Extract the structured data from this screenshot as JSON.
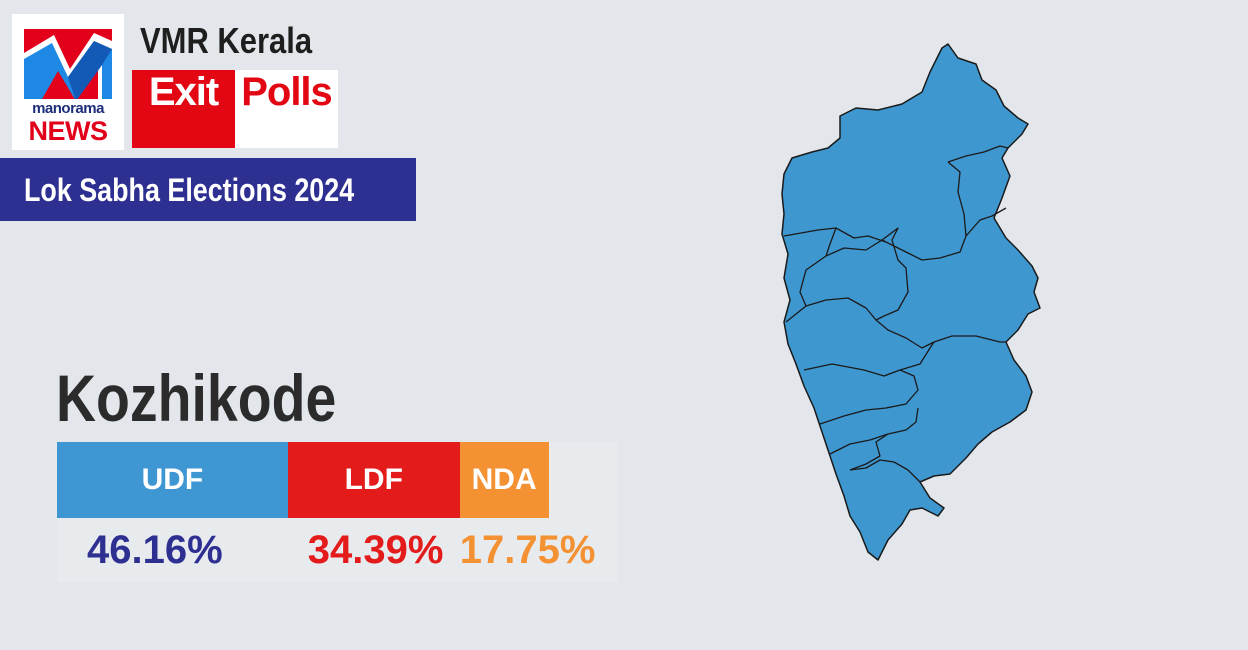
{
  "logo": {
    "line1": "manorama",
    "line2": "NEWS"
  },
  "header": {
    "subtitle": "VMR Kerala",
    "exit_label": "Exit",
    "polls_label": "Polls",
    "banner": "Lok Sabha Elections 2024"
  },
  "colors": {
    "udf": "#3e97d3",
    "ldf": "#e31b1b",
    "nda": "#f39133",
    "udf_text": "#2d2f91",
    "ldf_text": "#e31b1b",
    "nda_text": "#f39133",
    "map_fill": "#3f97d0",
    "banner": "#2d2f91"
  },
  "chart_data": {
    "type": "bar",
    "stacked": true,
    "orientation": "horizontal",
    "title": "Kozhikode",
    "categories": [
      "UDF",
      "LDF",
      "NDA"
    ],
    "values": [
      46.16,
      34.39,
      17.75
    ],
    "value_labels": [
      "46.16%",
      "34.39%",
      "17.75%"
    ],
    "unit": "%"
  }
}
